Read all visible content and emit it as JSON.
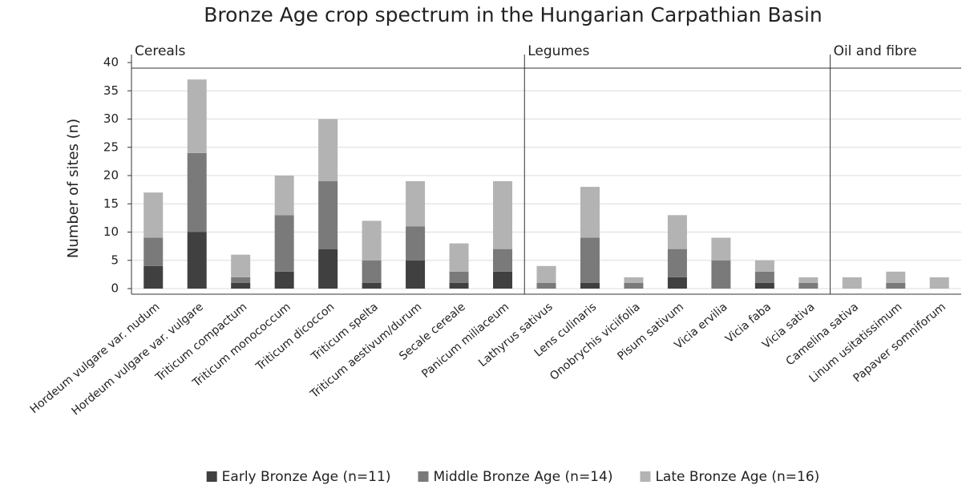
{
  "chart_data": {
    "type": "stacked_bar",
    "title": "Bronze Age crop spectrum in the Hungarian Carpathian Basin",
    "y_label": "Number of sites (n)",
    "categories": [
      "Hordeum vulgare var. nudum",
      "Hordeum vulgare var. vulgare",
      "Triticum compactum",
      "Triticum monococcum",
      "Triticum dicoccon",
      "Triticum spelta",
      "Triticum aestivum/durum",
      "Secale cereale",
      "Panicum miliaceum",
      "Lathyrus sativus",
      "Lens culinaris",
      "Onobrychis viciifolia",
      "Pisum sativum",
      "Vicia ervilia",
      "Vicia faba",
      "Vicia sativa",
      "Camelina sativa",
      "Linum usitatissimum",
      "Papaver somniforum"
    ],
    "groups": [
      {
        "label": "Cereals",
        "first": 0,
        "last": 8
      },
      {
        "label": "Legumes",
        "first": 9,
        "last": 15
      },
      {
        "label": "Oil and fibre",
        "first": 16,
        "last": 18
      }
    ],
    "series": [
      {
        "name": "Early Bronze Age (n=11)",
        "color": "#404040",
        "values": [
          4,
          10,
          1,
          3,
          7,
          1,
          5,
          1,
          3,
          0,
          1,
          0,
          2,
          0,
          1,
          0,
          0,
          0,
          0
        ]
      },
      {
        "name": "Middle Bronze Age (n=14)",
        "color": "#7a7a7a",
        "values": [
          5,
          14,
          1,
          10,
          12,
          4,
          6,
          2,
          4,
          1,
          8,
          1,
          5,
          5,
          2,
          1,
          0,
          1,
          0
        ]
      },
      {
        "name": "Late Bronze Age (n=16)",
        "color": "#b3b3b3",
        "values": [
          8,
          13,
          4,
          7,
          11,
          7,
          8,
          5,
          12,
          3,
          9,
          1,
          6,
          4,
          2,
          1,
          2,
          2,
          2
        ]
      }
    ],
    "ylim": [
      0,
      40
    ],
    "yticks": [
      0,
      5,
      10,
      15,
      20,
      25,
      30,
      35,
      40
    ],
    "grid": true,
    "legend": "bottom"
  }
}
